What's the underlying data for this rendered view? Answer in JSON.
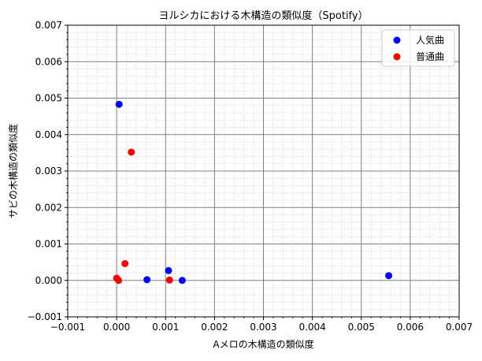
{
  "chart_data": {
    "type": "scatter",
    "title": "ヨルシカにおける木構造の類似度（Spotify）",
    "xlabel": "Aメロの木構造の類似度",
    "ylabel": "サビの木構造の類似度",
    "xlim": [
      -0.001,
      0.007
    ],
    "ylim": [
      -0.001,
      0.007
    ],
    "xticks": [
      -0.001,
      0.0,
      0.001,
      0.002,
      0.003,
      0.004,
      0.005,
      0.006,
      0.007
    ],
    "yticks": [
      -0.001,
      0.0,
      0.001,
      0.002,
      0.003,
      0.004,
      0.005,
      0.006,
      0.007
    ],
    "xtick_labels": [
      "−0.001",
      "0.000",
      "0.001",
      "0.002",
      "0.003",
      "0.004",
      "0.005",
      "0.006",
      "0.007"
    ],
    "ytick_labels": [
      "−0.001",
      "0.000",
      "0.001",
      "0.002",
      "0.003",
      "0.004",
      "0.005",
      "0.006",
      "0.007"
    ],
    "grid": true,
    "minor_grid": true,
    "legend_position": "top-right",
    "series": [
      {
        "name": "人気曲",
        "color": "#0000ff",
        "points": [
          {
            "x": 5e-05,
            "y": 0.00483
          },
          {
            "x": 0.00062,
            "y": 2e-05
          },
          {
            "x": 0.00106,
            "y": 0.00027
          },
          {
            "x": 0.00134,
            "y": 0.0
          },
          {
            "x": 0.00556,
            "y": 0.00013
          }
        ]
      },
      {
        "name": "普通曲",
        "color": "#ff0000",
        "points": [
          {
            "x": 0.0003,
            "y": 0.00352
          },
          {
            "x": 0.00017,
            "y": 0.00046
          },
          {
            "x": 0.0,
            "y": 6e-05
          },
          {
            "x": 4e-05,
            "y": 0.0
          },
          {
            "x": 0.00108,
            "y": 1e-05
          }
        ]
      }
    ]
  }
}
